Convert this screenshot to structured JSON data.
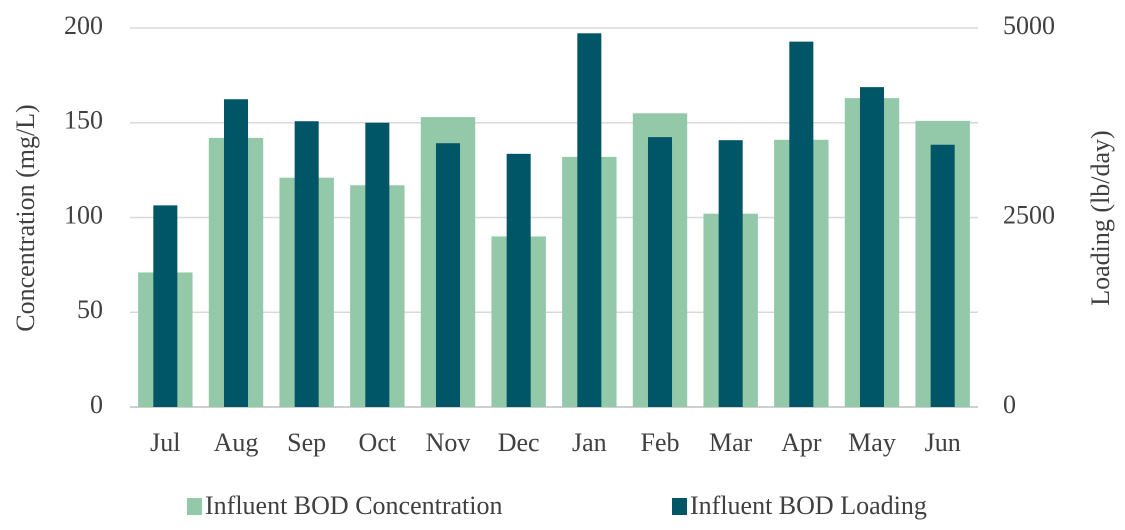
{
  "chart_data": {
    "type": "bar",
    "categories": [
      "Jul",
      "Aug",
      "Sep",
      "Oct",
      "Nov",
      "Dec",
      "Jan",
      "Feb",
      "Mar",
      "Apr",
      "May",
      "Jun"
    ],
    "series": [
      {
        "name": "Influent BOD Concentration",
        "color": "#93c9a8",
        "values": [
          71,
          142,
          121,
          117,
          153,
          90,
          132,
          155,
          102,
          141,
          163,
          151
        ]
      },
      {
        "name": "Influent BOD Loading",
        "color": "#005566",
        "axis": "y2",
        "values": [
          2660,
          4060,
          3770,
          3750,
          3480,
          3340,
          4930,
          3560,
          3520,
          4820,
          4220,
          3460
        ]
      }
    ],
    "ylabel": "Concentration (mg/L)",
    "y2label": "Loading (lb/day)",
    "ylim": [
      0,
      200
    ],
    "yticks": [
      0,
      50,
      100,
      150,
      200
    ],
    "y2lim": [
      0,
      5000
    ],
    "y2ticks": [
      0,
      2500,
      5000
    ],
    "grid": true,
    "legend": "bottom"
  }
}
